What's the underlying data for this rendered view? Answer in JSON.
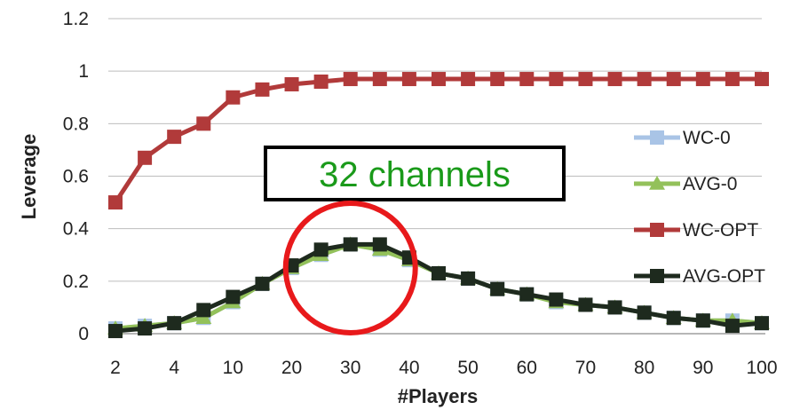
{
  "chart_data": {
    "type": "line",
    "title": "",
    "xlabel": "#Players",
    "ylabel": "Leverage",
    "ylim": [
      0,
      1.2
    ],
    "yticks": [
      "0",
      "0.2",
      "0.4",
      "0.6",
      "0.8",
      "1",
      "1.2"
    ],
    "x": [
      "2",
      "3",
      "4",
      "6",
      "10",
      "15",
      "20",
      "25",
      "30",
      "35",
      "40",
      "45",
      "50",
      "55",
      "60",
      "65",
      "70",
      "75",
      "80",
      "85",
      "90",
      "95",
      "100"
    ],
    "xtick_labels": [
      "2",
      "4",
      "10",
      "20",
      "30",
      "40",
      "50",
      "60",
      "70",
      "80",
      "90",
      "100"
    ],
    "grid": "horizontal",
    "legend_position": "right",
    "series": [
      {
        "name": "WC-0",
        "color": "#a9c4e6",
        "marker": "square",
        "values": [
          0.02,
          0.03,
          0.04,
          0.06,
          0.12,
          0.19,
          0.25,
          0.3,
          0.34,
          0.32,
          0.28,
          0.23,
          0.21,
          0.17,
          0.15,
          0.12,
          0.11,
          0.1,
          0.08,
          0.06,
          0.05,
          0.05,
          0.04
        ]
      },
      {
        "name": "AVG-0",
        "color": "#93c15a",
        "marker": "triangle",
        "values": [
          0.02,
          0.03,
          0.04,
          0.06,
          0.12,
          0.19,
          0.25,
          0.3,
          0.34,
          0.32,
          0.28,
          0.23,
          0.21,
          0.17,
          0.15,
          0.12,
          0.11,
          0.1,
          0.08,
          0.06,
          0.05,
          0.05,
          0.04
        ]
      },
      {
        "name": "WC-OPT",
        "color": "#b13a3a",
        "marker": "square",
        "values": [
          0.5,
          0.67,
          0.75,
          0.8,
          0.9,
          0.93,
          0.95,
          0.96,
          0.97,
          0.97,
          0.97,
          0.97,
          0.97,
          0.97,
          0.97,
          0.97,
          0.97,
          0.97,
          0.97,
          0.97,
          0.97,
          0.97,
          0.97
        ]
      },
      {
        "name": "AVG-OPT",
        "color": "#1e2a1e",
        "marker": "square",
        "values": [
          0.01,
          0.02,
          0.04,
          0.09,
          0.14,
          0.19,
          0.26,
          0.32,
          0.34,
          0.34,
          0.29,
          0.23,
          0.21,
          0.17,
          0.15,
          0.13,
          0.11,
          0.1,
          0.08,
          0.06,
          0.05,
          0.03,
          0.04
        ]
      }
    ],
    "annotations": [
      {
        "text": "32 channels",
        "color": "#1a9a1a",
        "box_color": "#000000"
      }
    ],
    "highlight": {
      "color": "#e8191b",
      "shape": "circle",
      "around_x": "30"
    }
  }
}
